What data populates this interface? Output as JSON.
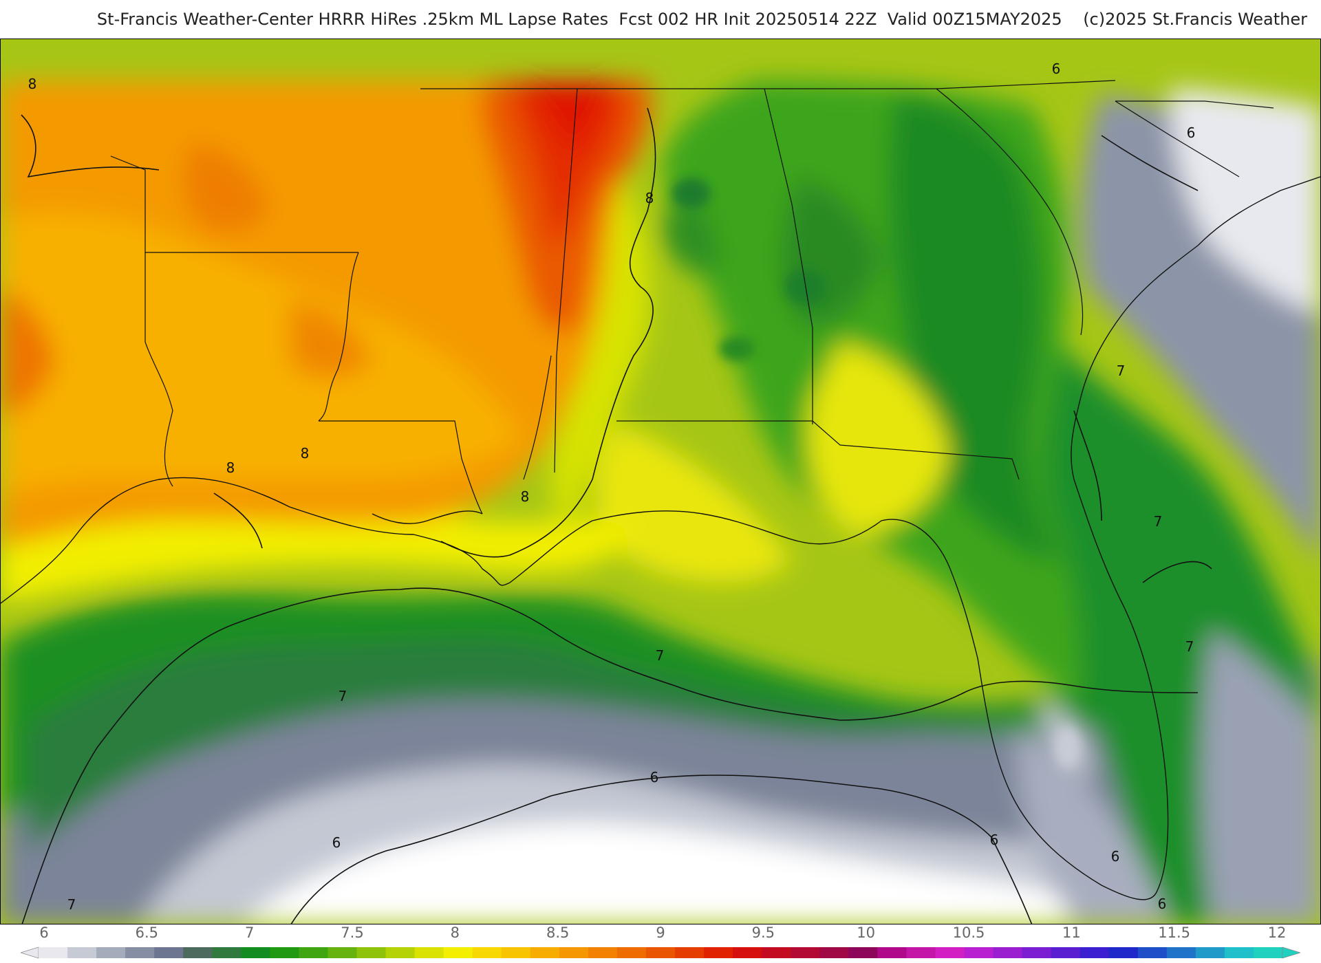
{
  "title": "St-Francis Weather-Center HRRR HiRes .25km ML Lapse Rates  Fcst 002 HR Init 20250514 22Z  Valid 00Z15MAY2025    (c)2025 St.Francis Weather",
  "map": {
    "variable": "ML Lapse Rates",
    "contour_labels": [
      "8",
      "8",
      "8",
      "8",
      "8",
      "7",
      "7",
      "7",
      "7",
      "7",
      "7",
      "6",
      "6",
      "6",
      "6",
      "6",
      "6",
      "6"
    ]
  },
  "legend": {
    "ticks": [
      "6",
      "6.5",
      "7",
      "7.5",
      "8",
      "8.5",
      "9",
      "9.5",
      "10",
      "10.5",
      "11",
      "11.5",
      "12"
    ],
    "colors": [
      "#e8e8ee",
      "#c6cad4",
      "#a4abbb",
      "#868ea3",
      "#6c7690",
      "#4d6a5f",
      "#2f7a3c",
      "#138c22",
      "#1f9a12",
      "#3fa612",
      "#66b30f",
      "#8fc20a",
      "#b5d206",
      "#d9e203",
      "#f4ef00",
      "#f7d800",
      "#f8c400",
      "#f7ad00",
      "#f59700",
      "#f28200",
      "#ee6c00",
      "#ea5500",
      "#e53c00",
      "#e02200",
      "#d60f0f",
      "#c40c20",
      "#b20a33",
      "#a00846",
      "#8e065a",
      "#b00a8a",
      "#c416a7",
      "#d11fc3",
      "#b81fd1",
      "#9a1fd1",
      "#7a1fd1",
      "#5a1fd1",
      "#3b1fd1",
      "#1f28c9",
      "#1f4ec9",
      "#1f74c9",
      "#1f9ac9",
      "#1fc0c9",
      "#21d1c0"
    ]
  }
}
